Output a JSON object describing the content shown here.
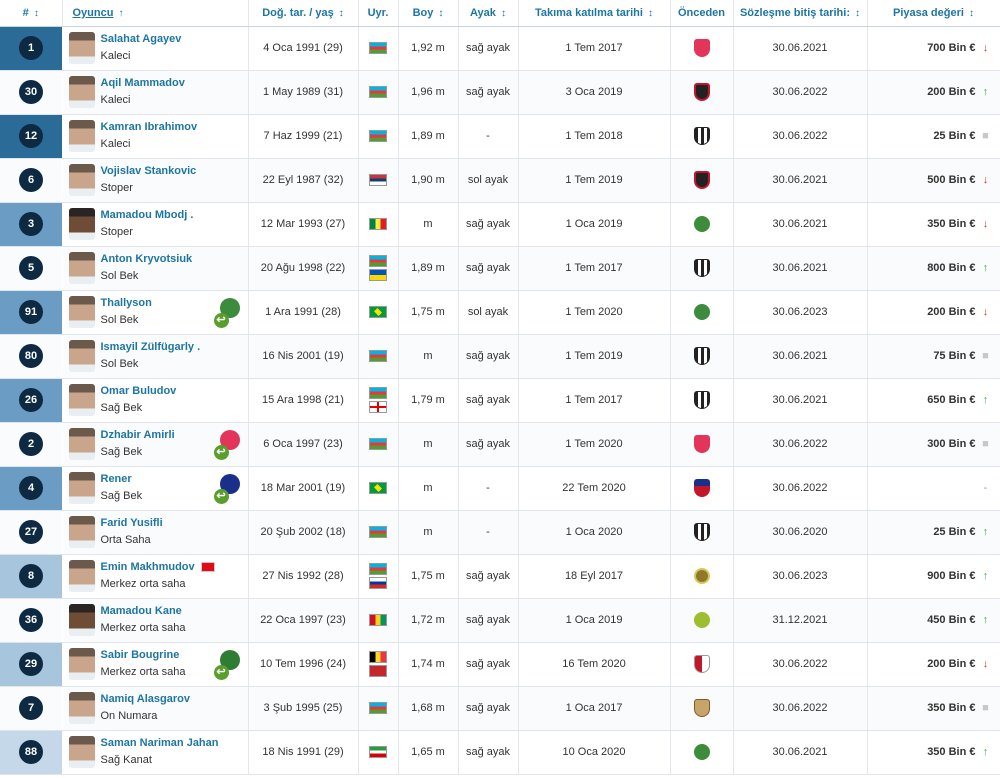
{
  "headers": {
    "num": "#",
    "player": "Oyuncu",
    "birth": "Doğ. tar. / yaş",
    "nat": "Uyr.",
    "height": "Boy",
    "foot": "Ayak",
    "joined": "Takıma katılma tarihi",
    "prev": "Önceden",
    "contract": "Sözleşme bitiş tarihi:",
    "value": "Piyasa değeri"
  },
  "sort_icons": {
    "both": "↕",
    "asc": "↑"
  },
  "players": [
    {
      "num": "1",
      "name": "Salahat Agayev",
      "pos": "Kaleci",
      "group": "kaleci",
      "birth": "4 Oca 1991 (29)",
      "flags": [
        "az"
      ],
      "height": "1,92 m",
      "foot": "sağ ayak",
      "joined": "1 Tem 2017",
      "club": "pink",
      "contract": "30.06.2021",
      "value": "700 Bin €",
      "trend": "down",
      "trend_icon": "↓"
    },
    {
      "num": "30",
      "name": "Aqil Mammadov",
      "pos": "Kaleci",
      "group": "kaleci",
      "birth": "1 May 1989 (31)",
      "flags": [
        "az"
      ],
      "height": "1,96 m",
      "foot": "sağ ayak",
      "joined": "3 Oca 2019",
      "club": "black",
      "contract": "30.06.2022",
      "value": "200 Bin €",
      "trend": "up",
      "trend_icon": "↑"
    },
    {
      "num": "12",
      "name": "Kamran Ibrahimov",
      "pos": "Kaleci",
      "group": "kaleci",
      "birth": "7 Haz 1999 (21)",
      "flags": [
        "az"
      ],
      "height": "1,89 m",
      "foot": "-",
      "joined": "1 Tem 2018",
      "club": "bw",
      "contract": "30.06.2022",
      "value": "25 Bin €",
      "trend": "flat",
      "trend_icon": "■"
    },
    {
      "num": "6",
      "name": "Vojislav Stankovic",
      "pos": "Stoper",
      "group": "defans",
      "birth": "22 Eyl 1987 (32)",
      "flags": [
        "rs"
      ],
      "height": "1,90 m",
      "foot": "sol ayak",
      "joined": "1 Tem 2019",
      "club": "black",
      "contract": "30.06.2021",
      "value": "500 Bin €",
      "trend": "down",
      "trend_icon": "↓"
    },
    {
      "num": "3",
      "name": "Mamadou Mbodj .",
      "pos": "Stoper",
      "group": "defans",
      "dark": true,
      "birth": "12 Mar 1993 (27)",
      "flags": [
        "sn"
      ],
      "height": "m",
      "foot": "sağ ayak",
      "joined": "1 Oca 2019",
      "club": "green",
      "contract": "30.06.2021",
      "value": "350 Bin €",
      "trend": "down",
      "trend_icon": "↓"
    },
    {
      "num": "5",
      "name": "Anton Kryvotsiuk",
      "pos": "Sol Bek",
      "group": "defans",
      "birth": "20 Ağu 1998 (22)",
      "flags": [
        "az",
        "ua"
      ],
      "height": "1,89 m",
      "foot": "sağ ayak",
      "joined": "1 Tem 2017",
      "club": "bw",
      "contract": "30.06.2021",
      "value": "800 Bin €",
      "trend": "up",
      "trend_icon": "↑"
    },
    {
      "num": "91",
      "name": "Thallyson",
      "pos": "Sol Bek",
      "group": "defans",
      "loan": "#3d8b3d",
      "birth": "1 Ara 1991 (28)",
      "flags": [
        "br"
      ],
      "height": "1,75 m",
      "foot": "sol ayak",
      "joined": "1 Tem 2020",
      "club": "green",
      "contract": "30.06.2023",
      "value": "200 Bin €",
      "trend": "down",
      "trend_icon": "↓"
    },
    {
      "num": "80",
      "name": "Ismayil Zülfügarly .",
      "pos": "Sol Bek",
      "group": "defans",
      "birth": "16 Nis 2001 (19)",
      "flags": [
        "az"
      ],
      "height": "m",
      "foot": "sağ ayak",
      "joined": "1 Tem 2019",
      "club": "bw",
      "contract": "30.06.2021",
      "value": "75 Bin €",
      "trend": "flat",
      "trend_icon": "■"
    },
    {
      "num": "26",
      "name": "Omar Buludov",
      "pos": "Sağ Bek",
      "group": "defans",
      "birth": "15 Ara 1998 (21)",
      "flags": [
        "az",
        "ge"
      ],
      "height": "1,79 m",
      "foot": "sağ ayak",
      "joined": "1 Tem 2017",
      "club": "bw",
      "contract": "30.06.2021",
      "value": "650 Bin €",
      "trend": "up",
      "trend_icon": "↑"
    },
    {
      "num": "2",
      "name": "Dzhabir Amirli",
      "pos": "Sağ Bek",
      "group": "defans",
      "loan": "#e3345a",
      "birth": "6 Oca 1997 (23)",
      "flags": [
        "az"
      ],
      "height": "m",
      "foot": "sağ ayak",
      "joined": "1 Tem 2020",
      "club": "pink",
      "contract": "30.06.2022",
      "value": "300 Bin €",
      "trend": "flat",
      "trend_icon": "■"
    },
    {
      "num": "4",
      "name": "Rener",
      "pos": "Sağ Bek",
      "group": "defans",
      "loan": "#1a2f8a",
      "birth": "18 Mar 2001 (19)",
      "flags": [
        "br"
      ],
      "height": "m",
      "foot": "-",
      "joined": "22 Tem 2020",
      "club": "shield",
      "contract": "30.06.2022",
      "value": "",
      "trend": "none",
      "trend_icon": "-"
    },
    {
      "num": "27",
      "name": "Farid Yusifli",
      "pos": "Orta Saha",
      "group": "ortasaha",
      "birth": "20 Şub 2002 (18)",
      "flags": [
        "az"
      ],
      "height": "m",
      "foot": "-",
      "joined": "1 Oca 2020",
      "club": "bw",
      "contract": "30.06.2020",
      "value": "25 Bin €",
      "trend": "up",
      "trend_icon": "↑"
    },
    {
      "num": "8",
      "name": "Emin Makhmudov",
      "pos": "Merkez orta saha",
      "group": "ortasaha",
      "natflag": true,
      "birth": "27 Nis 1992 (28)",
      "flags": [
        "az",
        "ru"
      ],
      "height": "1,75 m",
      "foot": "sağ ayak",
      "joined": "18 Eyl 2017",
      "club": "gold",
      "contract": "30.06.2023",
      "value": "900 Bin €",
      "trend": "up",
      "trend_icon": "↑"
    },
    {
      "num": "36",
      "name": "Mamadou Kane",
      "pos": "Merkez orta saha",
      "group": "ortasaha",
      "dark": true,
      "birth": "22 Oca 1997 (23)",
      "flags": [
        "gn"
      ],
      "height": "1,72 m",
      "foot": "sağ ayak",
      "joined": "1 Oca 2019",
      "club": "ygreen",
      "contract": "31.12.2021",
      "value": "450 Bin €",
      "trend": "up",
      "trend_icon": "↑"
    },
    {
      "num": "29",
      "name": "Sabir Bougrine",
      "pos": "Merkez orta saha",
      "group": "ortasaha",
      "loan": "#2f7d32",
      "birth": "10 Tem 1996 (24)",
      "flags": [
        "be",
        "ma"
      ],
      "height": "1,74 m",
      "foot": "sağ ayak",
      "joined": "16 Tem 2020",
      "club": "redwhite",
      "contract": "30.06.2022",
      "value": "200 Bin €",
      "trend": "down",
      "trend_icon": "↓"
    },
    {
      "num": "7",
      "name": "Namiq Alasgarov",
      "pos": "On Numara",
      "group": "ortasaha",
      "birth": "3 Şub 1995 (25)",
      "flags": [
        "az"
      ],
      "height": "1,68 m",
      "foot": "sağ ayak",
      "joined": "1 Oca 2017",
      "club": "beige",
      "contract": "30.06.2022",
      "value": "350 Bin €",
      "trend": "flat",
      "trend_icon": "■"
    },
    {
      "num": "88",
      "name": "Saman Nariman Jahan",
      "pos": "Sağ Kanat",
      "group": "forvet",
      "birth": "18 Nis 1991 (29)",
      "flags": [
        "ir"
      ],
      "height": "1,65 m",
      "foot": "sağ ayak",
      "joined": "10 Oca 2020",
      "club": "green",
      "contract": "30.06.2021",
      "value": "350 Bin €",
      "trend": "up",
      "trend_icon": "↑"
    }
  ]
}
